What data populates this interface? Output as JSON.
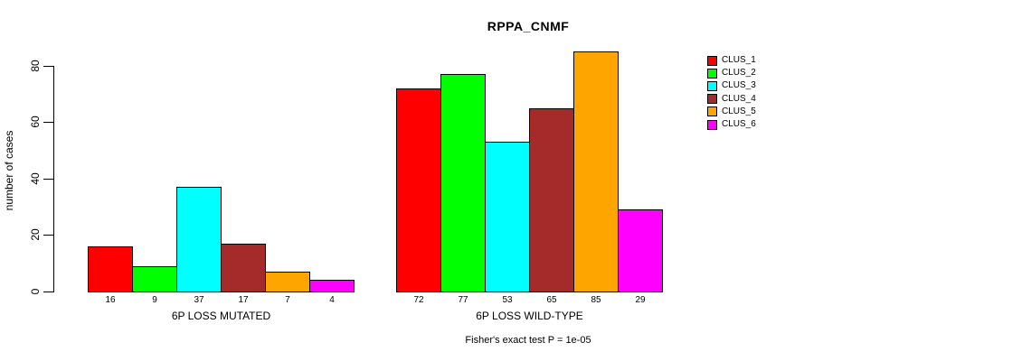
{
  "title": "RPPA_CNMF",
  "y_axis": {
    "label": "number of cases",
    "ticks": [
      0,
      20,
      40,
      60,
      80
    ]
  },
  "caption": "Fisher's exact test P = 1e-05",
  "legend": {
    "items": [
      {
        "label": "CLUS_1",
        "color": "#ff0000"
      },
      {
        "label": "CLUS_2",
        "color": "#00ff00"
      },
      {
        "label": "CLUS_3",
        "color": "#00ffff"
      },
      {
        "label": "CLUS_4",
        "color": "#a52a2a"
      },
      {
        "label": "CLUS_5",
        "color": "#ffa500"
      },
      {
        "label": "CLUS_6",
        "color": "#ff00ff"
      }
    ]
  },
  "chart_data": {
    "type": "bar",
    "title": "RPPA_CNMF",
    "xlabel": "",
    "ylabel": "number of cases",
    "ylim": [
      0,
      85
    ],
    "yticks": [
      0,
      20,
      40,
      60,
      80
    ],
    "grid": false,
    "legend_position": "right",
    "categories": [
      "6P LOSS MUTATED",
      "6P LOSS WILD-TYPE"
    ],
    "category_keys": [
      "mutated",
      "wildtype"
    ],
    "series": [
      {
        "name": "CLUS_1",
        "color": "#ff0000",
        "values": [
          16,
          72
        ]
      },
      {
        "name": "CLUS_2",
        "color": "#00ff00",
        "values": [
          9,
          77
        ]
      },
      {
        "name": "CLUS_3",
        "color": "#00ffff",
        "values": [
          37,
          53
        ]
      },
      {
        "name": "CLUS_4",
        "color": "#a52a2a",
        "values": [
          17,
          65
        ]
      },
      {
        "name": "CLUS_5",
        "color": "#ffa500",
        "values": [
          7,
          85
        ]
      },
      {
        "name": "CLUS_6",
        "color": "#ff00ff",
        "values": [
          4,
          29
        ]
      }
    ],
    "bar_value_labels": [
      [
        16,
        9,
        37,
        17,
        7,
        4
      ],
      [
        72,
        77,
        53,
        65,
        85,
        29
      ]
    ],
    "annotation": "Fisher's exact test P = 1e-05"
  }
}
